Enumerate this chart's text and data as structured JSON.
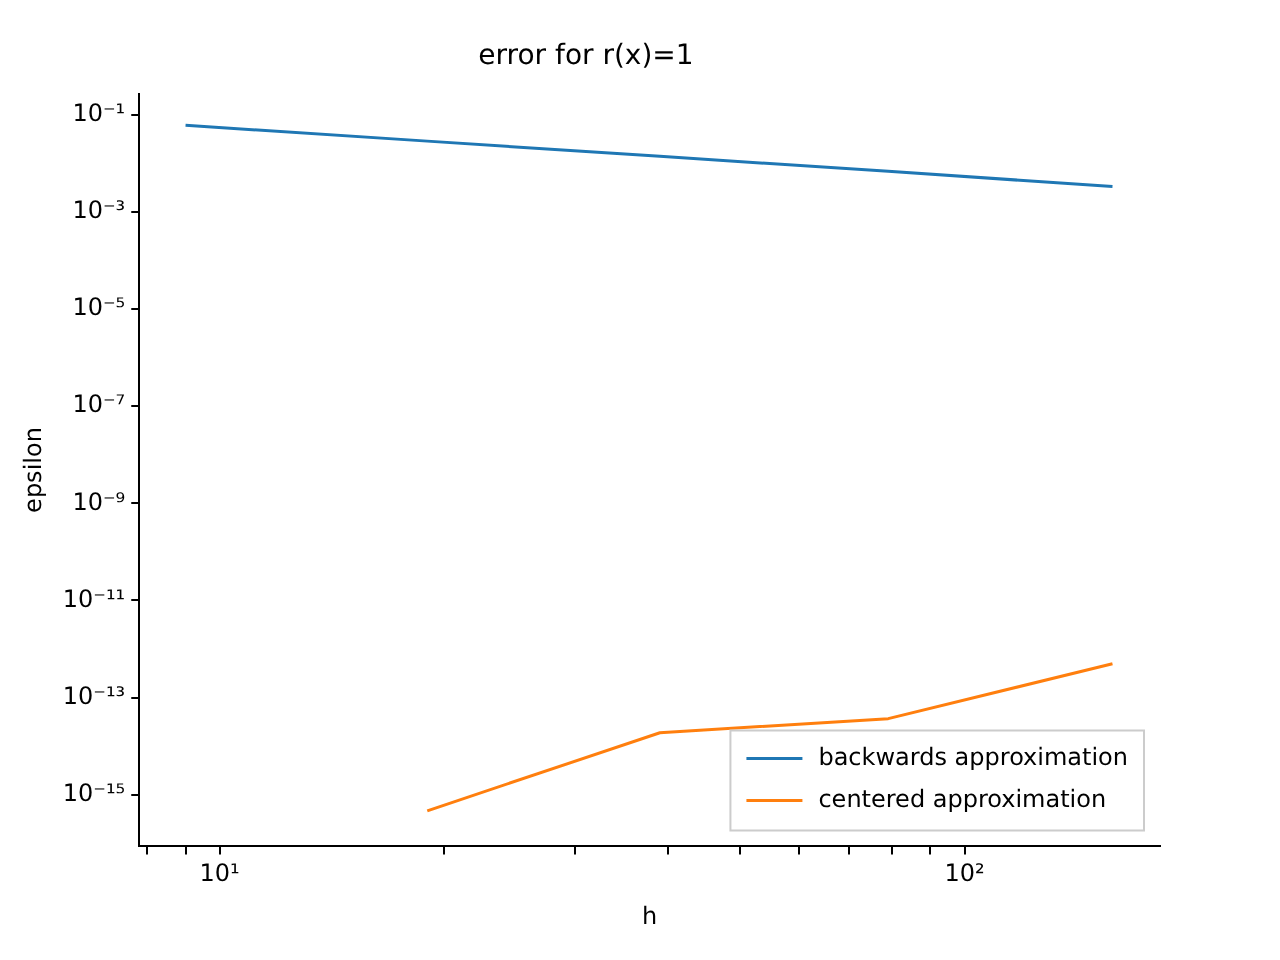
{
  "chart_data": {
    "type": "line",
    "title": "error for r(x)=1",
    "xlabel": "h",
    "ylabel": "epsilon",
    "x": [
      9,
      19,
      39,
      79,
      158
    ],
    "series": [
      {
        "name": "backwards approximation",
        "color": "#1f77b4",
        "values": [
          0.06,
          0.0284,
          0.0138,
          0.0068,
          0.0033
        ]
      },
      {
        "name": "centered approximation",
        "color": "#ff7f0e",
        "values": [
          null,
          4.7e-16,
          1.9e-14,
          3.7e-14,
          5e-13
        ]
      }
    ],
    "log": "xy",
    "xlim": [
      7.8,
      183
    ],
    "ylim": [
      8.7e-17,
      0.27
    ],
    "xticks": [
      {
        "value": 8,
        "label": null
      },
      {
        "value": 9,
        "label": null
      },
      {
        "value": 10,
        "label": "10¹"
      },
      {
        "value": 20,
        "label": null
      },
      {
        "value": 30,
        "label": null
      },
      {
        "value": 40,
        "label": null
      },
      {
        "value": 50,
        "label": null
      },
      {
        "value": 60,
        "label": null
      },
      {
        "value": 70,
        "label": null
      },
      {
        "value": 80,
        "label": null
      },
      {
        "value": 90,
        "label": null
      },
      {
        "value": 100,
        "label": "10²"
      }
    ],
    "yticks": [
      {
        "value": 1e-15,
        "label": "10⁻¹⁵"
      },
      {
        "value": 1e-13,
        "label": "10⁻¹³"
      },
      {
        "value": 1e-11,
        "label": "10⁻¹¹"
      },
      {
        "value": 1e-09,
        "label": "10⁻⁹"
      },
      {
        "value": 1e-07,
        "label": "10⁻⁷"
      },
      {
        "value": 1e-05,
        "label": "10⁻⁵"
      },
      {
        "value": 0.001,
        "label": "10⁻³"
      },
      {
        "value": 0.1,
        "label": "10⁻¹"
      }
    ],
    "grid": false,
    "legend": "bottom right",
    "marker": "none",
    "line_style": "solid"
  }
}
